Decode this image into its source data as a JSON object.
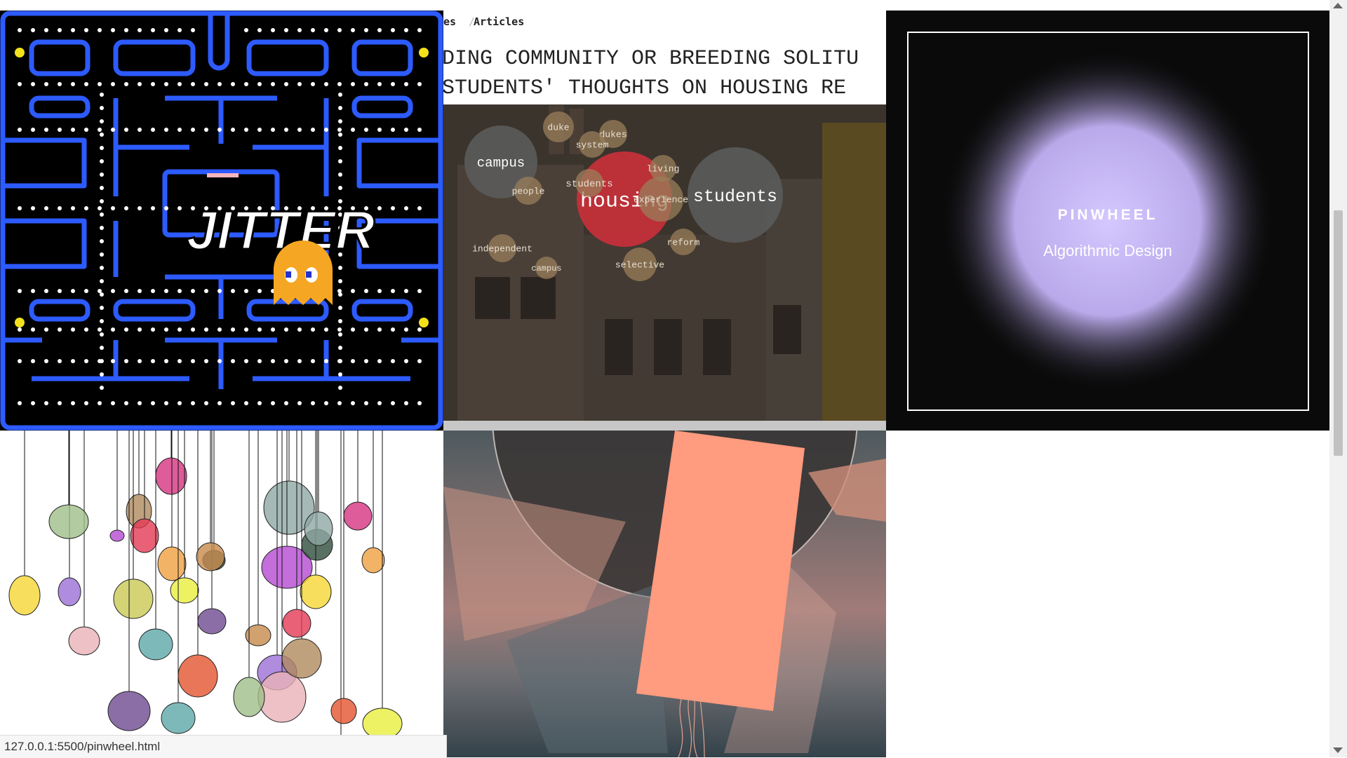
{
  "breadcrumb": {
    "prev": "es",
    "separator": "/",
    "current": "Articles"
  },
  "tiles": {
    "jitter": {
      "title": "JITTER"
    },
    "housing": {
      "headline_line1": "DING COMMUNITY OR BREEDING SOLITU",
      "headline_line2": "STUDENTS' THOUGHTS ON HOUSING RE",
      "bubbles": [
        {
          "word": "housing",
          "color": "#c8303a",
          "text_size": 30
        },
        {
          "word": "students",
          "color": "#5a5a5a",
          "text_size": 25
        },
        {
          "word": "campus",
          "color": "#5a5a5a",
          "text_size": 19
        },
        {
          "word": "duke",
          "color": "#9a7d5a",
          "text_size": 13
        },
        {
          "word": "dukes",
          "color": "#9a7d5a",
          "text_size": 13
        },
        {
          "word": "people",
          "color": "#9a7d5a",
          "text_size": 13
        },
        {
          "word": "system",
          "color": "#9a7d5a",
          "text_size": 13
        },
        {
          "word": "living",
          "color": "#9a7d5a",
          "text_size": 13
        },
        {
          "word": "students",
          "color": "#9a7d5a",
          "text_size": 14
        },
        {
          "word": "experience",
          "color": "#9a7d5a",
          "text_size": 13
        },
        {
          "word": "reform",
          "color": "#9a7d5a",
          "text_size": 13
        },
        {
          "word": "independent",
          "color": "#9a7d5a",
          "text_size": 13
        },
        {
          "word": "selective",
          "color": "#9a7d5a",
          "text_size": 13
        },
        {
          "word": "campus",
          "color": "#9a7d5a",
          "text_size": 12
        }
      ]
    },
    "pinwheel": {
      "title": "PINWHEEL",
      "subtitle": "Algorithmic Design"
    }
  },
  "status_bar": {
    "url": "127.0.0.1:5500/pinwheel.html"
  },
  "colors": {
    "maze_wall": "#2d5bff",
    "pellet": "#ffffff",
    "power_pellet": "#f3e21b",
    "ghost": "#f5a623",
    "glow": "#c9bcf5",
    "peach": "#ff9b7e"
  }
}
